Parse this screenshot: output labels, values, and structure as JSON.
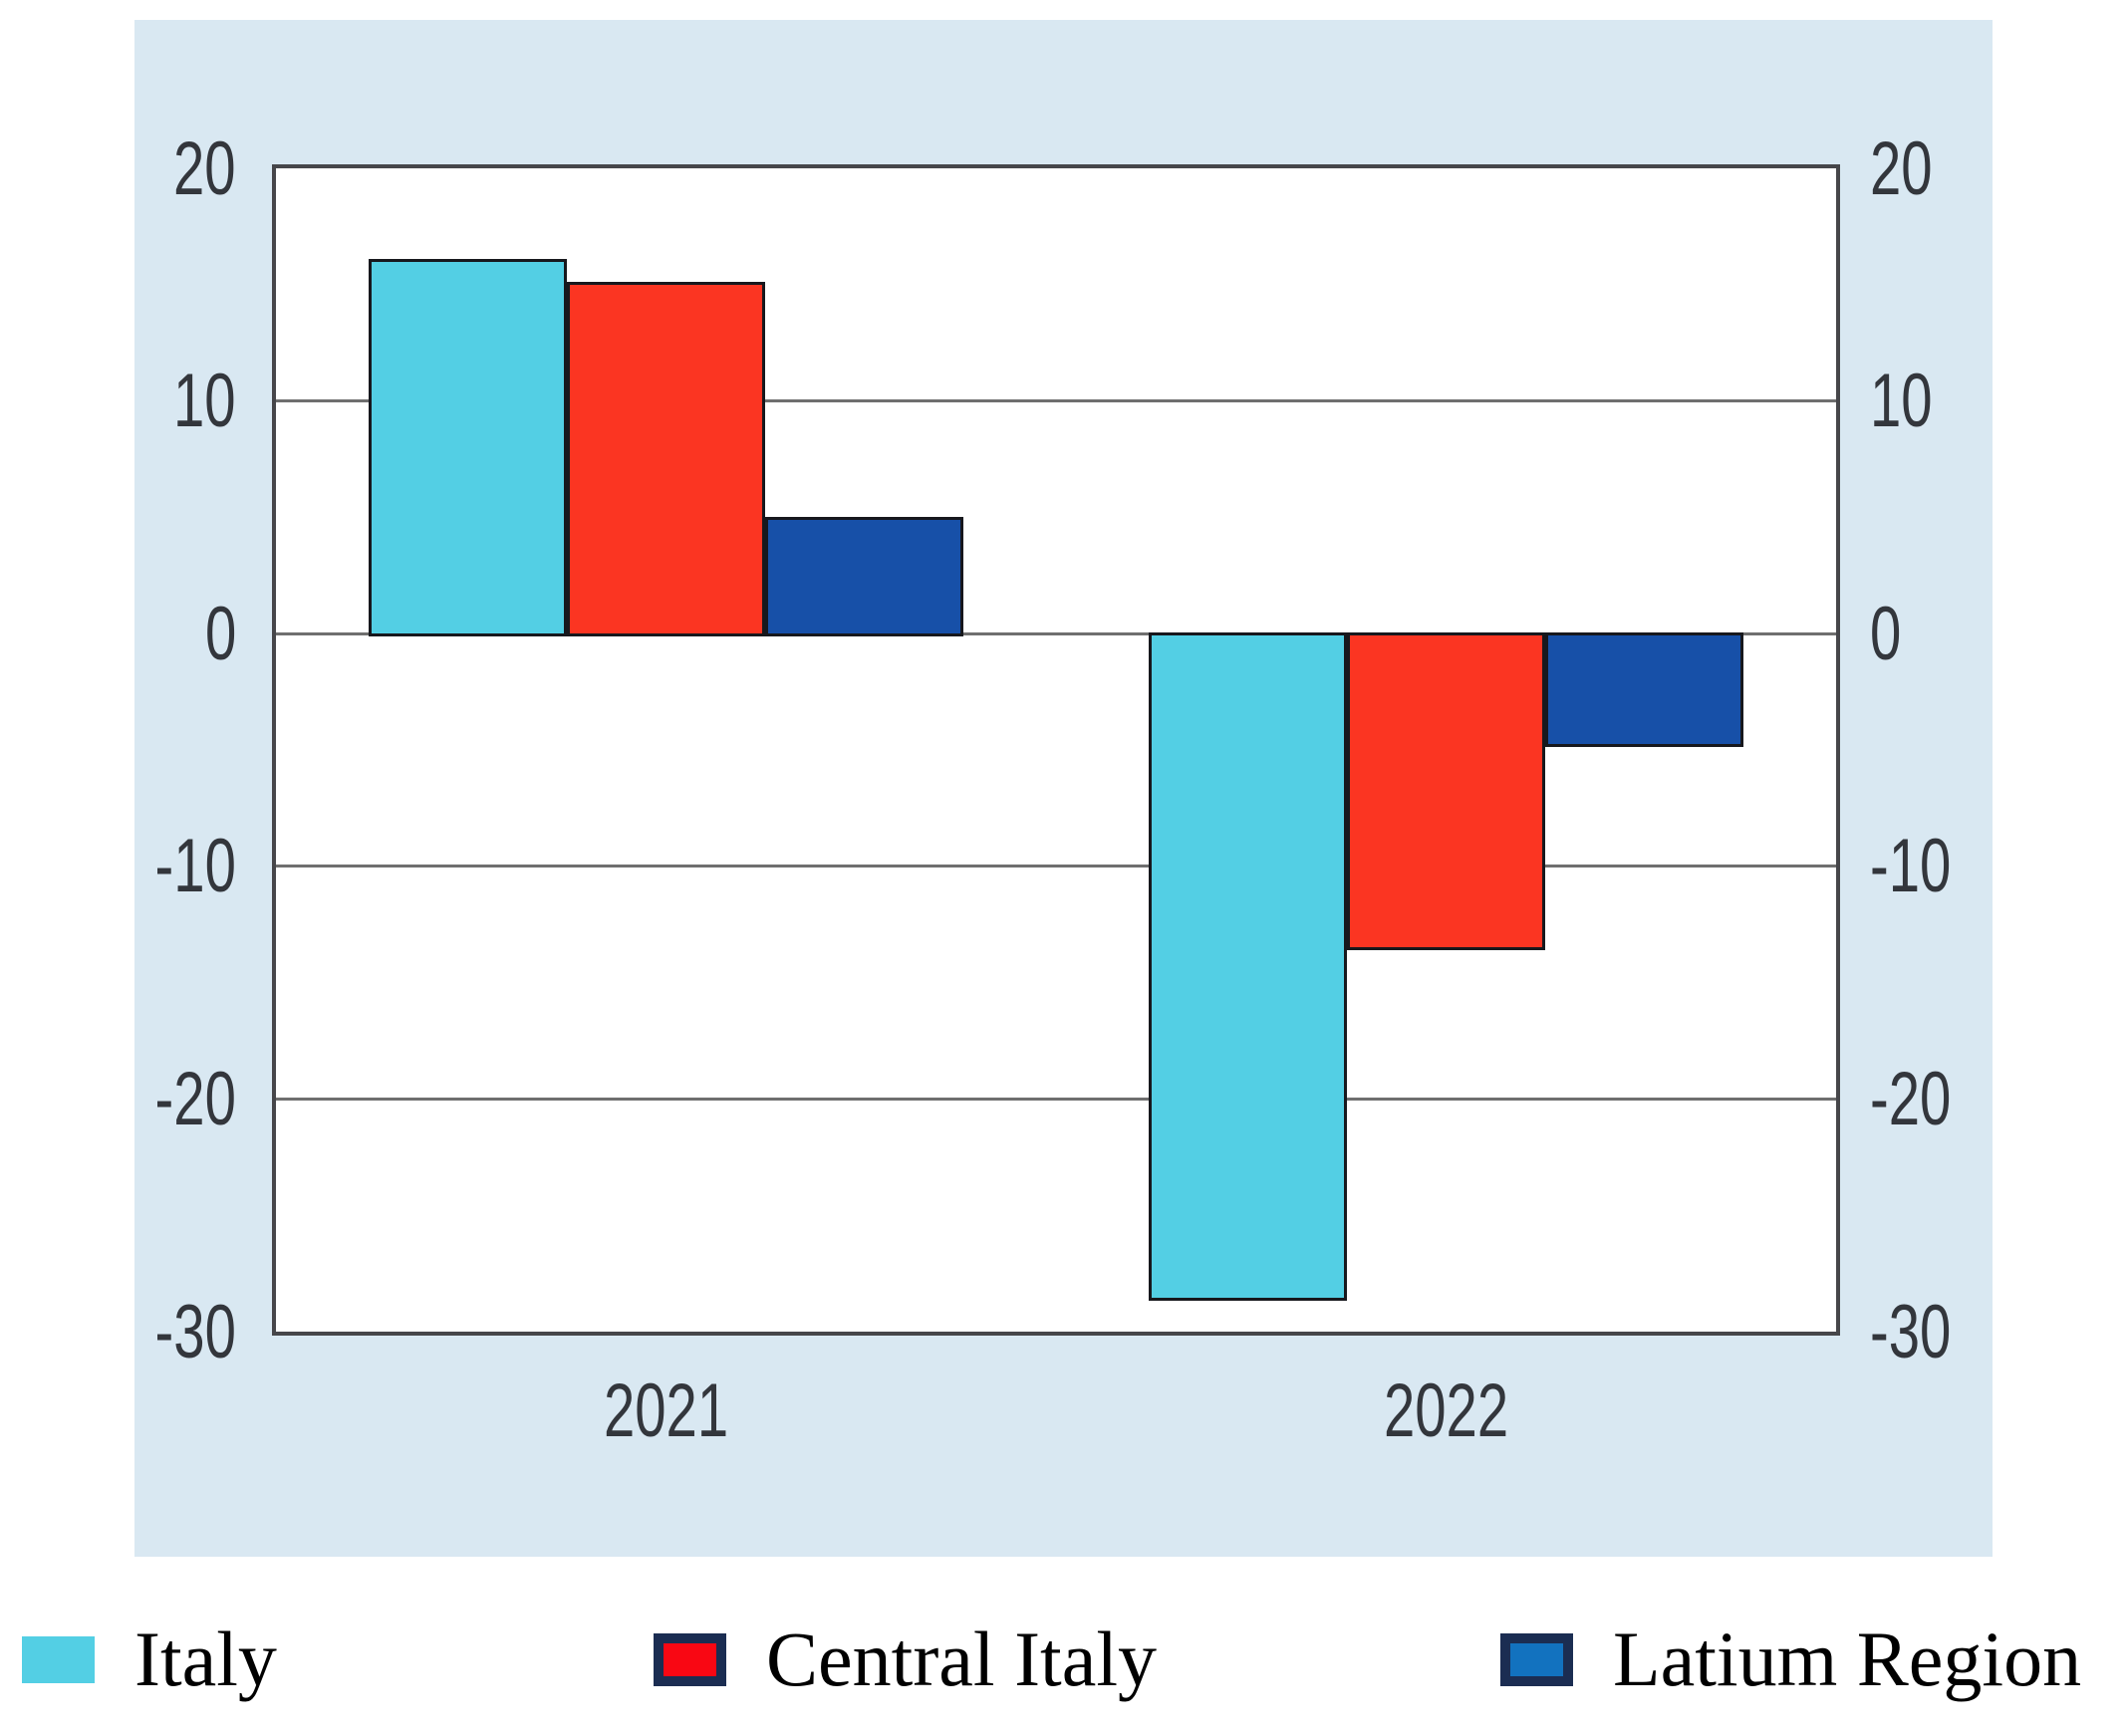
{
  "chart_data": {
    "type": "bar",
    "categories": [
      "2021",
      "2022"
    ],
    "series": [
      {
        "name": "Italy",
        "values": [
          16.1,
          -28.6
        ],
        "color": "#53cfe4",
        "legend_swatch": {
          "fill": "#53cfe4",
          "border": "none"
        }
      },
      {
        "name": "Central Italy",
        "values": [
          15.1,
          -13.5
        ],
        "color": "#fb3522",
        "legend_swatch": {
          "fill": "#f90713",
          "border": "#1b2d52"
        }
      },
      {
        "name": "Latium Region",
        "values": [
          5.0,
          -4.8
        ],
        "color": "#1750a8",
        "legend_swatch": {
          "fill": "#1272bf",
          "border": "#1b2d52"
        }
      }
    ],
    "yticks": [
      20,
      10,
      0,
      -10,
      -20,
      -30
    ],
    "ylim": [
      -30,
      20
    ],
    "title": "",
    "xlabel": "",
    "ylabel": "",
    "grid": "horizontal",
    "legend_position": "bottom",
    "axis_tick_sides": [
      "left",
      "right"
    ]
  },
  "colors": {
    "panel_background": "#d9e8f2",
    "plot_background": "#ffffff",
    "plot_border": "#46464a",
    "gridline": "#6f6f6f",
    "bar_border": "#17181d",
    "tick_text": "#33363c",
    "year_text": "#33363c",
    "legend_text": "#000000"
  }
}
